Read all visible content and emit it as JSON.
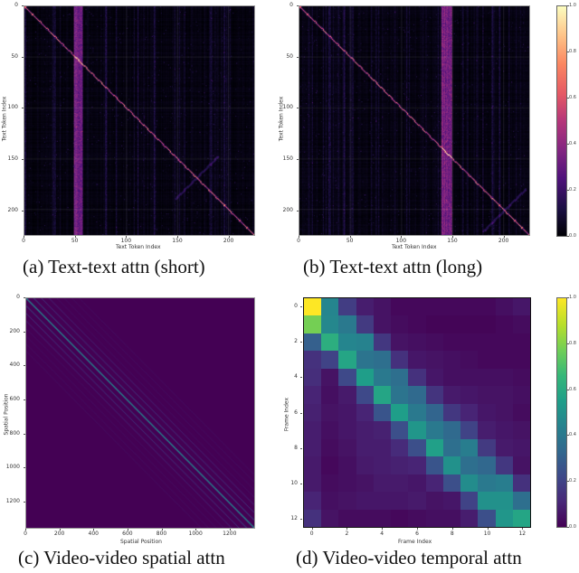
{
  "chart_data": [
    {
      "id": "a",
      "type": "heatmap",
      "title": "(a) Text-text attn (short)",
      "xlabel": "Text Token Index",
      "ylabel": "Text Token Index",
      "xlim": [
        0,
        225
      ],
      "ylim": [
        225,
        0
      ],
      "xticks": [
        0,
        50,
        100,
        150,
        200
      ],
      "yticks": [
        0,
        50,
        100,
        150,
        200
      ],
      "colormap": "magma",
      "grid": true,
      "features": {
        "diagonal": true,
        "vertical_band_column": [
          48,
          56
        ],
        "cross_pattern_center": [
          168,
          168
        ]
      }
    },
    {
      "id": "b",
      "type": "heatmap",
      "title": "(b) Text-text attn (long)",
      "xlabel": "Text Token Index",
      "ylabel": "Text Token Index",
      "xlim": [
        0,
        225
      ],
      "ylim": [
        225,
        0
      ],
      "xticks": [
        0,
        50,
        100,
        150,
        200
      ],
      "yticks": [
        0,
        50,
        100,
        150,
        200
      ],
      "colormap": "magma",
      "grid": true,
      "features": {
        "diagonal": true,
        "vertical_band_column": [
          138,
          148
        ],
        "cross_pattern_center": [
          200,
          200
        ]
      }
    },
    {
      "id": "colorbar_top",
      "type": "colorbar",
      "colormap": "magma",
      "range": [
        0.0,
        1.0
      ],
      "ticks": [
        "0.0",
        "0.2",
        "0.4",
        "0.6",
        "0.8",
        "1.0"
      ]
    },
    {
      "id": "c",
      "type": "heatmap",
      "title": "(c) Video-video spatial attn",
      "xlabel": "Spatial Position",
      "ylabel": "Spatial Position",
      "xlim": [
        0,
        1350
      ],
      "ylim": [
        1350,
        0
      ],
      "xticks": [
        0,
        200,
        400,
        600,
        800,
        1000,
        1200
      ],
      "yticks": [
        0,
        200,
        400,
        600,
        800,
        1000,
        1200
      ],
      "colormap": "viridis",
      "features": {
        "diagonal_bands_offsets": [
          0,
          45,
          90,
          -45,
          -90,
          135,
          -135
        ]
      }
    },
    {
      "id": "d",
      "type": "heatmap",
      "title": "(d) Video-video temporal attn",
      "xlabel": "Frame Index",
      "ylabel": "Frame Index",
      "xticks": [
        0,
        2,
        4,
        6,
        8,
        10,
        12
      ],
      "yticks": [
        0,
        2,
        4,
        6,
        8,
        10,
        12
      ],
      "colormap": "viridis",
      "range": [
        0.0,
        1.0
      ],
      "values": [
        [
          1.0,
          0.45,
          0.18,
          0.08,
          0.05,
          0.02,
          0.02,
          0.02,
          0.02,
          0.02,
          0.02,
          0.04,
          0.06
        ],
        [
          0.78,
          0.46,
          0.4,
          0.17,
          0.05,
          0.03,
          0.02,
          0.01,
          0.01,
          0.01,
          0.01,
          0.02,
          0.03
        ],
        [
          0.3,
          0.62,
          0.45,
          0.44,
          0.16,
          0.05,
          0.04,
          0.03,
          0.02,
          0.02,
          0.02,
          0.02,
          0.02
        ],
        [
          0.14,
          0.2,
          0.58,
          0.38,
          0.36,
          0.14,
          0.06,
          0.05,
          0.04,
          0.03,
          0.02,
          0.02,
          0.02
        ],
        [
          0.13,
          0.05,
          0.22,
          0.55,
          0.4,
          0.36,
          0.14,
          0.06,
          0.04,
          0.04,
          0.04,
          0.04,
          0.03
        ],
        [
          0.1,
          0.04,
          0.07,
          0.22,
          0.58,
          0.38,
          0.34,
          0.15,
          0.07,
          0.06,
          0.05,
          0.05,
          0.04
        ],
        [
          0.09,
          0.05,
          0.06,
          0.1,
          0.26,
          0.55,
          0.4,
          0.32,
          0.16,
          0.1,
          0.06,
          0.05,
          0.03
        ],
        [
          0.08,
          0.04,
          0.06,
          0.08,
          0.09,
          0.24,
          0.52,
          0.4,
          0.34,
          0.2,
          0.08,
          0.06,
          0.05
        ],
        [
          0.08,
          0.03,
          0.05,
          0.08,
          0.08,
          0.12,
          0.24,
          0.56,
          0.36,
          0.42,
          0.17,
          0.07,
          0.06
        ],
        [
          0.07,
          0.02,
          0.04,
          0.07,
          0.08,
          0.09,
          0.1,
          0.26,
          0.5,
          0.36,
          0.33,
          0.16,
          0.05
        ],
        [
          0.07,
          0.03,
          0.04,
          0.05,
          0.07,
          0.07,
          0.06,
          0.1,
          0.24,
          0.48,
          0.4,
          0.42,
          0.14
        ],
        [
          0.1,
          0.04,
          0.05,
          0.06,
          0.06,
          0.06,
          0.07,
          0.05,
          0.06,
          0.2,
          0.5,
          0.5,
          0.36
        ],
        [
          0.14,
          0.05,
          0.03,
          0.03,
          0.03,
          0.02,
          0.03,
          0.04,
          0.04,
          0.08,
          0.24,
          0.52,
          0.58
        ]
      ]
    },
    {
      "id": "colorbar_bottom",
      "type": "colorbar",
      "colormap": "viridis",
      "range": [
        0.0,
        1.0
      ],
      "ticks": [
        "0.0",
        "0.2",
        "0.4",
        "0.6",
        "0.8",
        "1.0"
      ]
    }
  ],
  "panels": {
    "a": {
      "caption": "(a) Text-text attn (short)",
      "xlabel": "Text Token Index",
      "ylabel": "Text Token Index",
      "xticks": [
        "0",
        "50",
        "100",
        "150",
        "200"
      ],
      "yticks": [
        "0",
        "50",
        "100",
        "150",
        "200"
      ]
    },
    "b": {
      "caption": "(b) Text-text attn (long)",
      "xlabel": "Text Token Index",
      "ylabel": "Text Token Index",
      "xticks": [
        "0",
        "50",
        "100",
        "150",
        "200"
      ],
      "yticks": [
        "0",
        "50",
        "100",
        "150",
        "200"
      ]
    },
    "c": {
      "caption": "(c) Video-video spatial attn",
      "xlabel": "Spatial Position",
      "ylabel": "Spatial Position",
      "xticks": [
        "0",
        "200",
        "400",
        "600",
        "800",
        "1000",
        "1200"
      ],
      "yticks": [
        "0",
        "200",
        "400",
        "600",
        "800",
        "1000",
        "1200"
      ]
    },
    "d": {
      "caption": "(d) Video-video temporal attn",
      "xlabel": "Frame Index",
      "ylabel": "Frame Index",
      "xticks": [
        "0",
        "2",
        "4",
        "6",
        "8",
        "10",
        "12"
      ],
      "yticks": [
        "0",
        "2",
        "4",
        "6",
        "8",
        "10",
        "12"
      ]
    }
  },
  "colorbars": {
    "top": {
      "ticks": [
        "1.0",
        "0.8",
        "0.6",
        "0.4",
        "0.2",
        "0.0"
      ]
    },
    "bottom": {
      "ticks": [
        "1.0",
        "0.8",
        "0.6",
        "0.4",
        "0.2",
        "0.0"
      ]
    }
  }
}
